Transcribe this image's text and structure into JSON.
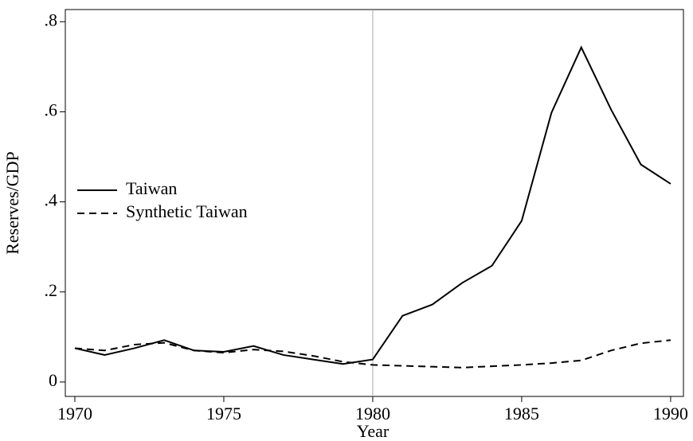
{
  "chart_data": {
    "type": "line",
    "x_label": "Year",
    "y_label": "Reserves/GDP",
    "x": [
      1970,
      1971,
      1972,
      1973,
      1974,
      1975,
      1976,
      1977,
      1978,
      1979,
      1980,
      1981,
      1982,
      1983,
      1984,
      1985,
      1986,
      1987,
      1988,
      1989,
      1990
    ],
    "series": [
      {
        "name": "Taiwan",
        "color": "#000000",
        "dash": "solid",
        "values": [
          0.075,
          0.06,
          0.075,
          0.093,
          0.07,
          0.067,
          0.08,
          0.06,
          0.05,
          0.04,
          0.05,
          0.147,
          0.172,
          0.22,
          0.258,
          0.358,
          0.598,
          0.743,
          0.605,
          0.483,
          0.44
        ]
      },
      {
        "name": "Synthetic Taiwan",
        "color": "#000000",
        "dash": "dashed",
        "values": [
          0.075,
          0.07,
          0.083,
          0.087,
          0.07,
          0.065,
          0.072,
          0.068,
          0.058,
          0.045,
          0.038,
          0.036,
          0.034,
          0.032,
          0.035,
          0.038,
          0.042,
          0.048,
          0.07,
          0.086,
          0.093
        ]
      }
    ],
    "vline": 1980,
    "xlim": [
      1969.68,
      1990.43
    ],
    "ylim": [
      -0.032,
      0.827
    ],
    "xticks": [
      1970,
      1975,
      1980,
      1985,
      1990
    ],
    "yticks": [
      0,
      {
        "value": 0.2,
        "label": ".2"
      },
      {
        "value": 0.4,
        "label": ".4"
      },
      {
        "value": 0.6,
        "label": ".6"
      },
      {
        "value": 0.8,
        "label": ".8"
      }
    ],
    "legend": "west"
  }
}
